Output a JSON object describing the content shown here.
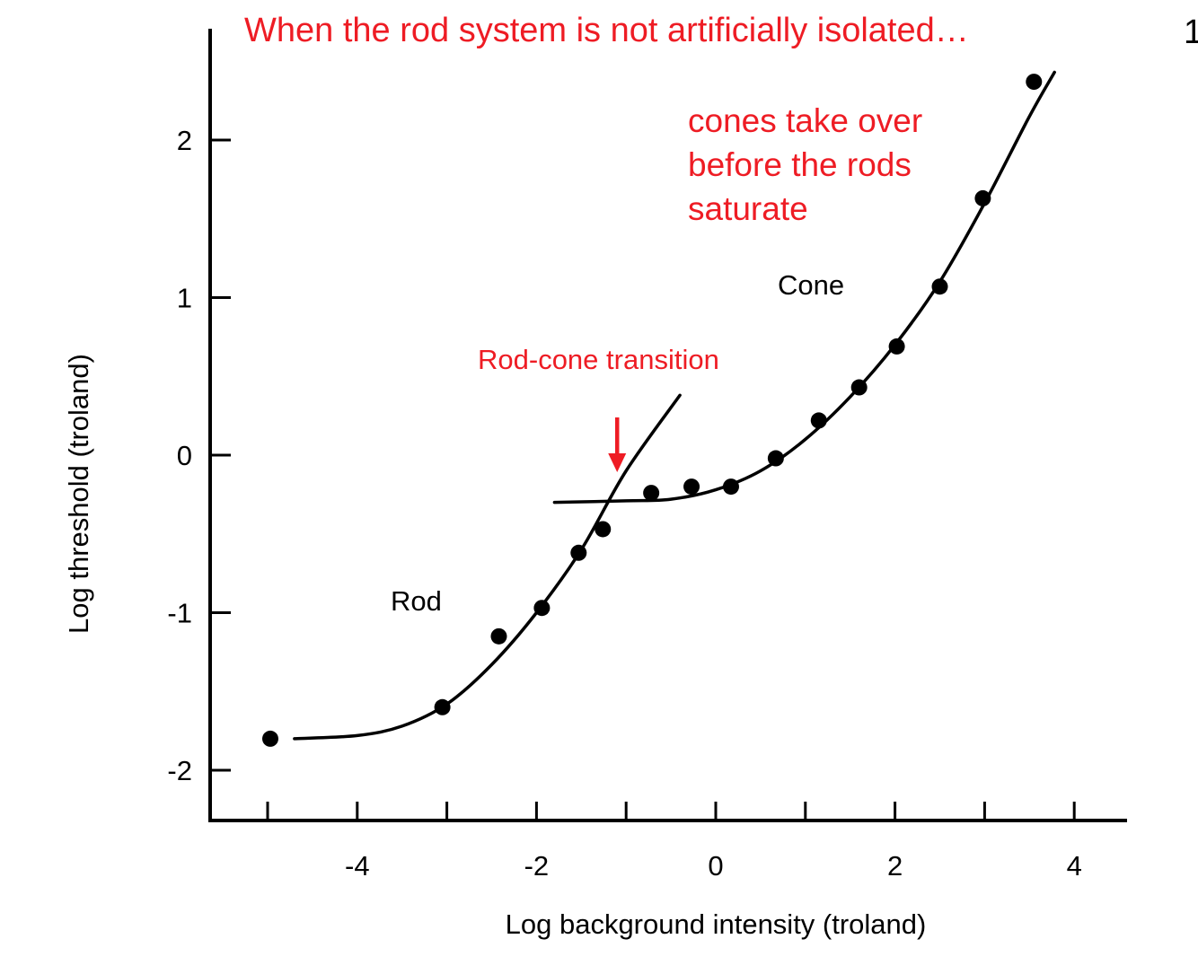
{
  "slide": {
    "corner_text": "1"
  },
  "annotations": {
    "headline": "When the rod system is not artificially isolated…",
    "cones_note_lines": [
      "cones take over",
      "before the rods",
      "saturate"
    ],
    "transition_label": "Rod-cone transition",
    "rod_label": "Rod",
    "cone_label": "Cone"
  },
  "colors": {
    "accent_red": "#ee1c24",
    "ink": "#000000"
  },
  "chart_data": {
    "type": "scatter",
    "title": "",
    "xlabel": "Log background intensity  (troland)",
    "ylabel": "Log threshold  (troland)",
    "xlim": [
      -5.0,
      4.0
    ],
    "ylim": [
      -2.3,
      2.7
    ],
    "x_ticks": [
      -5,
      -4,
      -3,
      -2,
      -1,
      0,
      1,
      2,
      3,
      4
    ],
    "x_tick_labels": [
      {
        "value": -4,
        "label": "-4"
      },
      {
        "value": -2,
        "label": "-2"
      },
      {
        "value": 0,
        "label": "0"
      },
      {
        "value": 2,
        "label": "2"
      },
      {
        "value": 4,
        "label": "4"
      }
    ],
    "y_ticks": [
      -2,
      -1,
      0,
      1,
      2
    ],
    "y_tick_labels": [
      {
        "value": 2,
        "label": "2"
      },
      {
        "value": 1,
        "label": "1"
      },
      {
        "value": 0,
        "label": "0"
      },
      {
        "value": -1,
        "label": "-1"
      },
      {
        "value": -2,
        "label": "-2"
      }
    ],
    "grid": false,
    "series": [
      {
        "points": [
          {
            "x": -4.97,
            "y": -1.8
          },
          {
            "x": -3.05,
            "y": -1.6
          },
          {
            "x": -2.42,
            "y": -1.15
          },
          {
            "x": -1.94,
            "y": -0.97
          },
          {
            "x": -1.53,
            "y": -0.62
          },
          {
            "x": -1.26,
            "y": -0.47
          },
          {
            "x": -0.72,
            "y": -0.24
          },
          {
            "x": -0.27,
            "y": -0.2
          },
          {
            "x": 0.17,
            "y": -0.2
          },
          {
            "x": 0.67,
            "y": -0.02
          },
          {
            "x": 1.15,
            "y": 0.22
          },
          {
            "x": 1.6,
            "y": 0.43
          },
          {
            "x": 2.02,
            "y": 0.69
          },
          {
            "x": 2.5,
            "y": 1.07
          },
          {
            "x": 2.98,
            "y": 1.63
          },
          {
            "x": 3.55,
            "y": 2.37
          }
        ]
      }
    ],
    "curves": {
      "rod_curve": [
        [
          -4.7,
          -1.8
        ],
        [
          -4.0,
          -1.78
        ],
        [
          -3.5,
          -1.72
        ],
        [
          -3.0,
          -1.58
        ],
        [
          -2.5,
          -1.33
        ],
        [
          -2.0,
          -1.0
        ],
        [
          -1.5,
          -0.6
        ],
        [
          -1.0,
          -0.1
        ],
        [
          -0.4,
          0.38
        ]
      ],
      "cone_curve": [
        [
          -1.8,
          -0.3
        ],
        [
          -1.0,
          -0.29
        ],
        [
          -0.5,
          -0.28
        ],
        [
          0.0,
          -0.22
        ],
        [
          0.5,
          -0.1
        ],
        [
          1.0,
          0.1
        ],
        [
          1.5,
          0.37
        ],
        [
          2.0,
          0.7
        ],
        [
          2.5,
          1.1
        ],
        [
          3.0,
          1.6
        ],
        [
          3.5,
          2.15
        ],
        [
          3.78,
          2.43
        ]
      ]
    },
    "transition_arrow_x": -1.1
  }
}
